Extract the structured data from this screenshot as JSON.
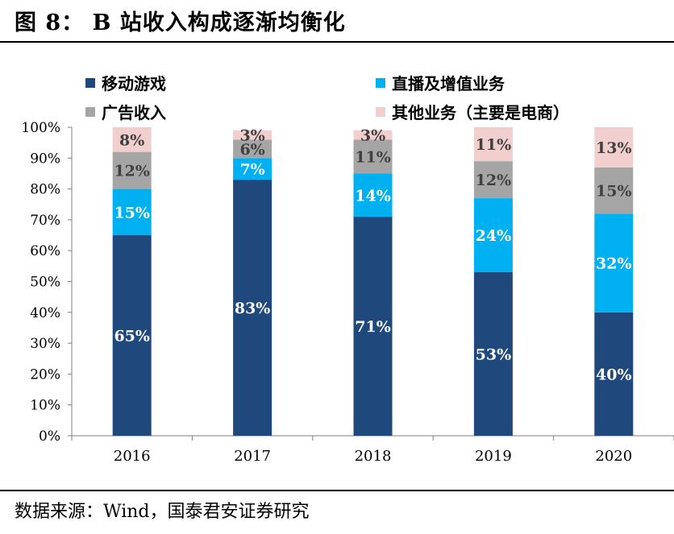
{
  "figure_title": "图 8： B 站收入构成逐渐均衡化",
  "source_text": "数据来源：Wind，国泰君安证券研究",
  "chart_data": {
    "type": "bar",
    "stacked": true,
    "categories": [
      "2016",
      "2017",
      "2018",
      "2019",
      "2020"
    ],
    "series": [
      {
        "name": "移动游戏",
        "color": "#1f497d",
        "values": [
          65,
          83,
          71,
          53,
          40
        ],
        "labels": [
          "65%",
          "83%",
          "71%",
          "53%",
          "40%"
        ],
        "label_color": "#ffffff"
      },
      {
        "name": "直播及增值业务",
        "color": "#00b0f0",
        "values": [
          15,
          7,
          14,
          24,
          32
        ],
        "labels": [
          "15%",
          "7%",
          "14%",
          "24%",
          "32%"
        ],
        "label_color": "#ffffff"
      },
      {
        "name": "广告收入",
        "color": "#a5a5a5",
        "values": [
          12,
          6,
          11,
          12,
          15
        ],
        "labels": [
          "12%",
          "6%",
          "11%",
          "12%",
          "15%"
        ],
        "label_color": "#404040"
      },
      {
        "name": "其他业务（主要是电商）",
        "color": "#f2cfcf",
        "values": [
          8,
          3,
          3,
          11,
          13
        ],
        "labels": [
          "8%",
          "3%",
          "3%",
          "11%",
          "13%"
        ],
        "label_color": "#404040"
      }
    ],
    "y_ticks": [
      "0%",
      "10%",
      "20%",
      "30%",
      "40%",
      "50%",
      "60%",
      "70%",
      "80%",
      "90%",
      "100%"
    ],
    "ylim": [
      0,
      100
    ],
    "grid": false,
    "legend_position": "top"
  }
}
